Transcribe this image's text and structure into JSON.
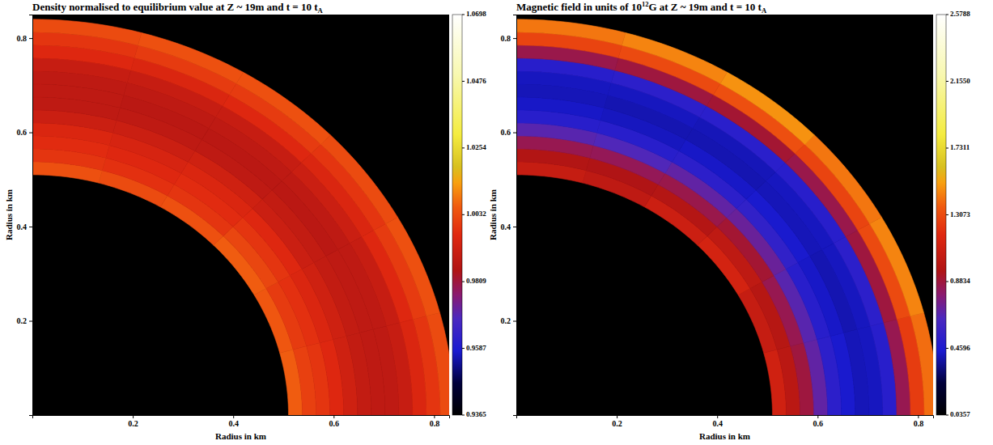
{
  "chart_data": [
    {
      "type": "heatmap",
      "title_parts": [
        {
          "text": "Density normalised to equilibrium value at Z ~ 19m and t = 10 t",
          "position": "baseline"
        },
        {
          "text": "A",
          "position": "subscript"
        }
      ],
      "x_label": "Radius in km",
      "y_label": "Radius in km",
      "xlim": [
        0,
        0.83
      ],
      "ylim": [
        0,
        0.85
      ],
      "xticks": [
        0.2,
        0.4,
        0.6,
        0.8
      ],
      "yticks": [
        0.2,
        0.4,
        0.6,
        0.8
      ],
      "r_edges": [
        0.51,
        0.5375,
        0.565,
        0.5925,
        0.62,
        0.6475,
        0.675,
        0.7025,
        0.73,
        0.7575,
        0.785,
        0.8125,
        0.84
      ],
      "angle_edges": [
        0,
        15,
        30,
        45,
        60,
        75,
        90
      ],
      "cells": [
        [
          1.006,
          1.005,
          1.006,
          1.004,
          1.003,
          1.004
        ],
        [
          1.001,
          1.0,
          1.002,
          0.999,
          0.998,
          0.999
        ],
        [
          0.999,
          0.998,
          0.999,
          0.997,
          0.996,
          0.997
        ],
        [
          0.996,
          0.995,
          0.996,
          0.995,
          0.994,
          0.995
        ],
        [
          0.992,
          0.992,
          0.991,
          0.992,
          0.991,
          0.991
        ],
        [
          0.989,
          0.989,
          0.989,
          0.988,
          0.988,
          0.988
        ],
        [
          0.988,
          0.988,
          0.987,
          0.987,
          0.987,
          0.988
        ],
        [
          0.988,
          0.988,
          0.988,
          0.988,
          0.988,
          0.988
        ],
        [
          0.99,
          0.99,
          0.991,
          0.99,
          0.99,
          0.99
        ],
        [
          0.995,
          0.996,
          0.995,
          0.996,
          0.995,
          0.996
        ],
        [
          0.999,
          1.0,
          0.999,
          1.0,
          1.0,
          0.999
        ],
        [
          1.003,
          1.004,
          1.003,
          1.004,
          1.004,
          1.003
        ]
      ],
      "colorbar": {
        "range": [
          0.9365,
          1.0698
        ],
        "ticks": [
          0.9365,
          0.9587,
          0.9809,
          1.0032,
          1.0254,
          1.0476,
          1.0698
        ]
      }
    },
    {
      "type": "heatmap",
      "title_parts": [
        {
          "text": "Magnetic field in units of 10",
          "position": "baseline"
        },
        {
          "text": "12",
          "position": "superscript"
        },
        {
          "text": "G at Z ~ 19m and t = 10 t",
          "position": "baseline"
        },
        {
          "text": "A",
          "position": "subscript"
        }
      ],
      "x_label": "Radius in km",
      "y_label": "Radius in km",
      "xlim": [
        0,
        0.83
      ],
      "ylim": [
        0,
        0.85
      ],
      "xticks": [
        0.2,
        0.4,
        0.6,
        0.8
      ],
      "yticks": [
        0.2,
        0.4,
        0.6,
        0.8
      ],
      "r_edges": [
        0.51,
        0.5375,
        0.565,
        0.5925,
        0.62,
        0.6475,
        0.675,
        0.7025,
        0.73,
        0.7575,
        0.785,
        0.8125,
        0.84
      ],
      "angle_edges": [
        0,
        15,
        30,
        45,
        60,
        75,
        90
      ],
      "cells": [
        [
          1.1,
          1.05,
          1.12,
          1.08,
          1.02,
          1.05
        ],
        [
          1.0,
          0.98,
          1.02,
          0.97,
          0.95,
          0.96
        ],
        [
          0.88,
          0.85,
          0.9,
          0.86,
          0.84,
          0.85
        ],
        [
          0.7,
          0.68,
          0.72,
          0.7,
          0.66,
          0.68
        ],
        [
          0.52,
          0.5,
          0.54,
          0.52,
          0.5,
          0.5
        ],
        [
          0.44,
          0.43,
          0.44,
          0.43,
          0.42,
          0.43
        ],
        [
          0.41,
          0.4,
          0.41,
          0.4,
          0.4,
          0.41
        ],
        [
          0.42,
          0.42,
          0.42,
          0.41,
          0.42,
          0.42
        ],
        [
          0.5,
          0.52,
          0.5,
          0.51,
          0.52,
          0.5
        ],
        [
          0.85,
          0.88,
          0.86,
          0.9,
          0.88,
          0.86
        ],
        [
          1.25,
          1.3,
          1.28,
          1.32,
          1.3,
          1.28
        ],
        [
          1.4,
          1.45,
          1.42,
          1.48,
          1.45,
          1.42
        ]
      ],
      "colorbar": {
        "range": [
          0.0357,
          2.5788
        ],
        "ticks": [
          0.0357,
          0.4596,
          0.8834,
          1.3073,
          1.7311,
          {
            "value": 2.155,
            "label": "2.1550"
          },
          2.5788
        ]
      }
    }
  ]
}
